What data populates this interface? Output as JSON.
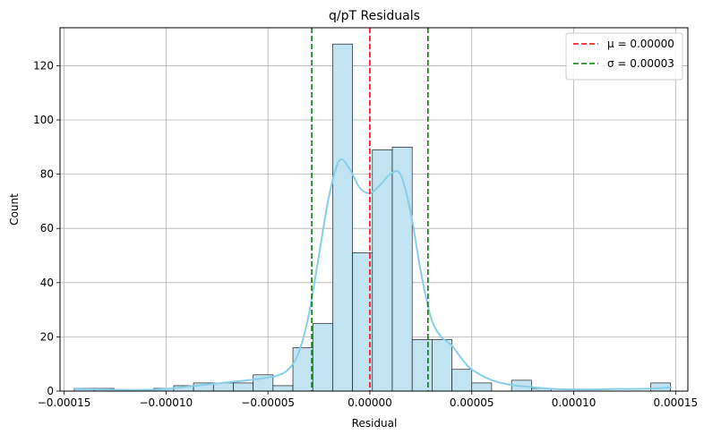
{
  "chart_data": {
    "type": "bar",
    "title": "q/pT Residuals",
    "xlabel": "Residual",
    "ylabel": "Count",
    "xlim": [
      -0.000152,
      0.000156
    ],
    "ylim": [
      0,
      134
    ],
    "grid": true,
    "legend_position": "top-right",
    "colors": {
      "bar_fill": "#c2e4f2",
      "bar_edge": "#000000",
      "kde": "#87ceeb",
      "mu_line": "#ff0000",
      "sigma_line": "#008000",
      "grid": "#b0b0b0"
    },
    "x_ticks": [
      {
        "value": -0.00015,
        "label": "−0.00015"
      },
      {
        "value": -0.0001,
        "label": "−0.00010"
      },
      {
        "value": -5e-05,
        "label": "−0.00005"
      },
      {
        "value": 0.0,
        "label": "0.00000"
      },
      {
        "value": 5e-05,
        "label": "0.00005"
      },
      {
        "value": 0.0001,
        "label": "0.00010"
      },
      {
        "value": 0.00015,
        "label": "0.00015"
      }
    ],
    "y_ticks": [
      {
        "value": 0,
        "label": "0"
      },
      {
        "value": 20,
        "label": "20"
      },
      {
        "value": 40,
        "label": "40"
      },
      {
        "value": 60,
        "label": "60"
      },
      {
        "value": 80,
        "label": "80"
      },
      {
        "value": 100,
        "label": "100"
      },
      {
        "value": 120,
        "label": "120"
      }
    ],
    "bins": {
      "start": -0.000145,
      "width": 9.75e-06,
      "counts": [
        1,
        1,
        0,
        0,
        1,
        2,
        3,
        3,
        3,
        6,
        2,
        16,
        25,
        128,
        51,
        89,
        90,
        19,
        19,
        8,
        3,
        0,
        4,
        1,
        0,
        0,
        0,
        0,
        0,
        3
      ]
    },
    "kde": {
      "x": [
        -0.000145,
        -0.00013,
        -0.000115,
        -0.0001,
        -9e-05,
        -8e-05,
        -7e-05,
        -6e-05,
        -5e-05,
        -4.5e-05,
        -4e-05,
        -3.5e-05,
        -3e-05,
        -2.5e-05,
        -2e-05,
        -1.5e-05,
        -1e-05,
        -5e-06,
        0.0,
        5e-06,
        1e-05,
        1.5e-05,
        2e-05,
        2.5e-05,
        3e-05,
        3.5e-05,
        4e-05,
        4.5e-05,
        5e-05,
        6e-05,
        7e-05,
        8e-05,
        9e-05,
        0.0001,
        0.00011,
        0.00012,
        0.00013,
        0.00014,
        0.000148
      ],
      "y": [
        0.8,
        0.6,
        0.4,
        0.8,
        1.6,
        2.4,
        3.2,
        4.0,
        5.0,
        5.8,
        8.0,
        14.0,
        28.0,
        50.0,
        72.0,
        85.0,
        82.0,
        75.0,
        73.0,
        76.0,
        80.0,
        80.0,
        66.0,
        44.0,
        27.0,
        20.0,
        17.0,
        12.0,
        8.0,
        4.0,
        2.2,
        1.4,
        0.8,
        0.6,
        0.6,
        0.8,
        0.8,
        1.0,
        1.4
      ]
    },
    "lines": [
      {
        "name": "μ = 0.00000",
        "x": 0.0,
        "color": "#ff0000"
      },
      {
        "name": "σ = 0.00003",
        "x": -2.85e-05,
        "color": "#008000"
      },
      {
        "name": "",
        "x": 2.85e-05,
        "color": "#008000"
      }
    ]
  }
}
